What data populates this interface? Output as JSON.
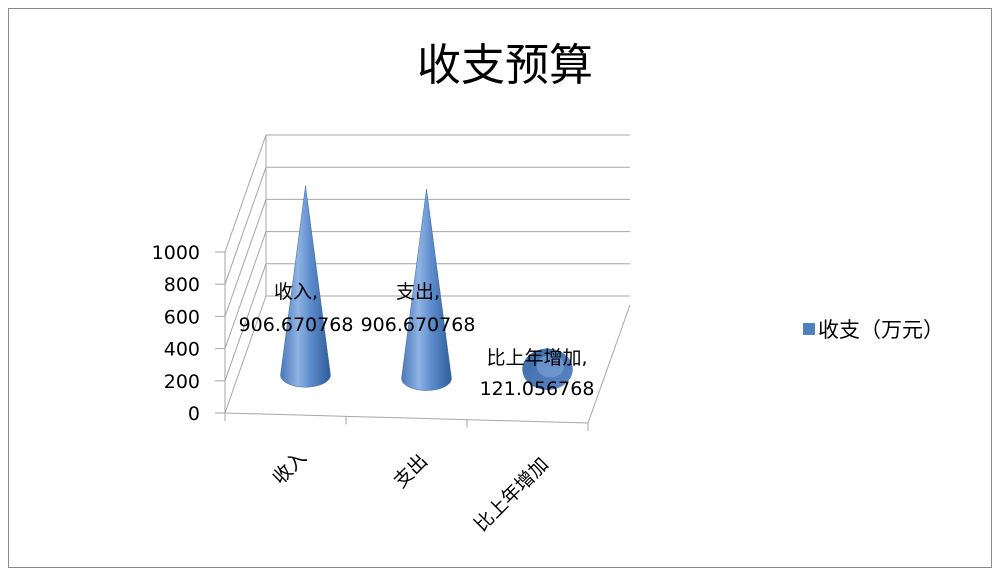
{
  "chart_data": {
    "type": "bar",
    "subtype": "3d-cone",
    "title": "收支预算",
    "categories": [
      "收入",
      "支出",
      "比上年增加"
    ],
    "series": [
      {
        "name": "收支（万元）",
        "color": "#4f81bd",
        "values": [
          906.670768,
          906.670768,
          121.056768
        ],
        "data_labels": [
          "收入,\n906.670768",
          "支出,\n906.670768",
          "比上年增加,\n121.056768"
        ]
      }
    ],
    "ylim": [
      0,
      1000
    ],
    "yticks": [
      0,
      200,
      400,
      600,
      800,
      1000
    ],
    "grid": true,
    "legend": "right"
  }
}
